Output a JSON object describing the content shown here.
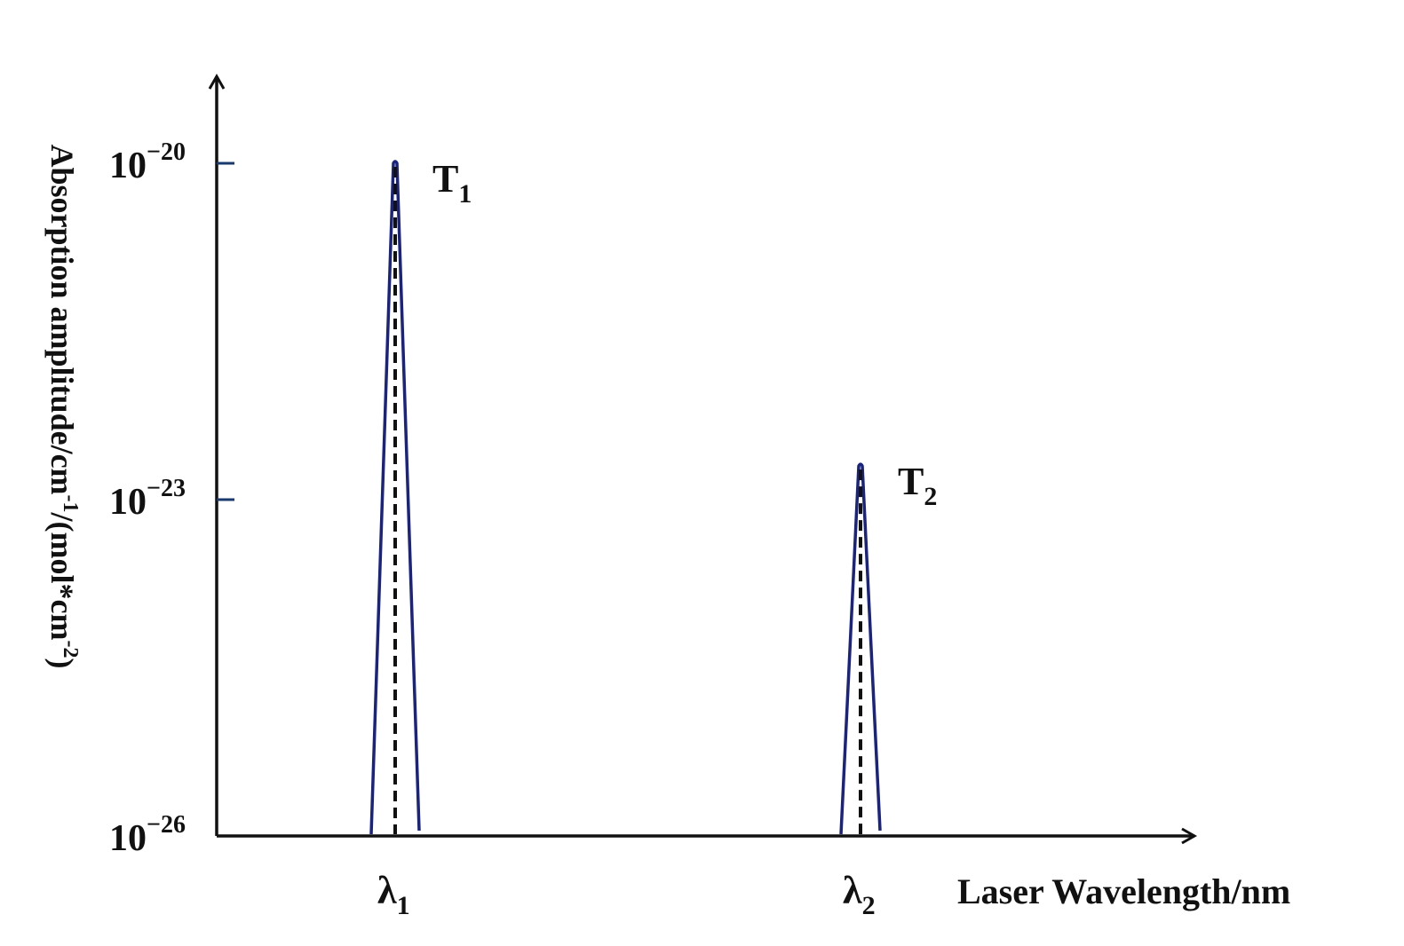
{
  "chart_data": {
    "type": "line",
    "title": "",
    "xlabel": "Laser Wavelength/nm",
    "ylabel": {
      "pre": "Absorption amplitude/cm",
      "sup1": "-1",
      "mid": "/(mol*cm",
      "sup2": "-2",
      "post": ")"
    },
    "y_scale": "log",
    "ylim": [
      "10^-26",
      "10^-20"
    ],
    "y_ticks": [
      {
        "value": -20,
        "base": "10",
        "exponent": "−20"
      },
      {
        "value": -23,
        "base": "10",
        "exponent": "−23"
      },
      {
        "value": -26,
        "base": "10",
        "exponent": "−26"
      }
    ],
    "x_ticks": [
      {
        "symbol": "λ",
        "sub": "1"
      },
      {
        "symbol": "λ",
        "sub": "2"
      }
    ],
    "series": [
      {
        "name": "T1",
        "label_base": "T",
        "label_sub": "1",
        "peak_log10": -20,
        "center_tick": 0
      },
      {
        "name": "T2",
        "label_base": "T",
        "label_sub": "2",
        "peak_log10": -22.7,
        "center_tick": 1
      }
    ],
    "grid": false,
    "colors": {
      "peak": "#1a237e",
      "axis": "#111111",
      "tick": "#1a3a6e",
      "dash": "#111111"
    }
  }
}
